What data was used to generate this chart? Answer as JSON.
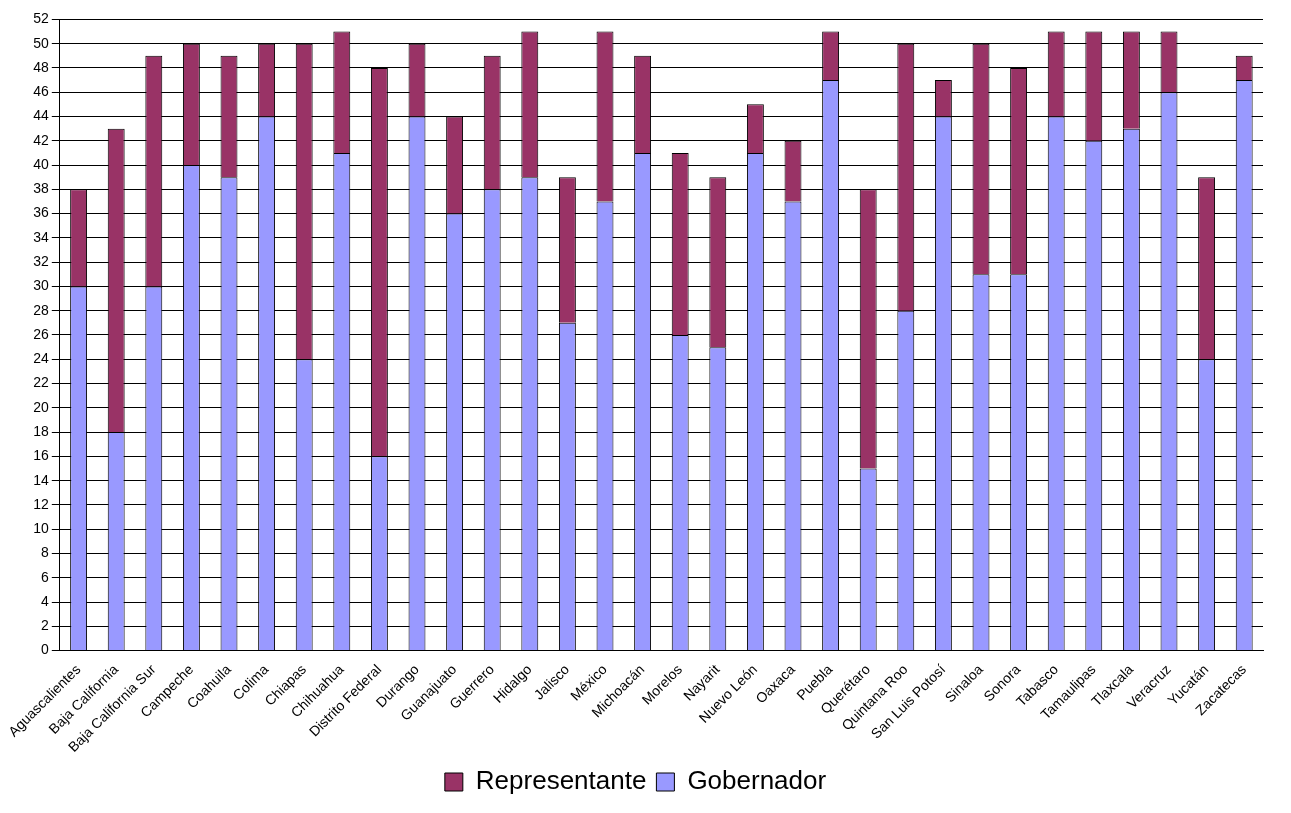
{
  "chart_data": {
    "type": "bar",
    "stacked": true,
    "categories": [
      "Aguascalientes",
      "Baja California",
      "Baja California Sur",
      "Campeche",
      "Coahuila",
      "Colima",
      "Chiapas",
      "Chihuahua",
      "Distrito Federal",
      "Durango",
      "Guanajuato",
      "Guerrero",
      "Hidalgo",
      "Jalisco",
      "México",
      "Michoacán",
      "Morelos",
      "Nayarit",
      "Nuevo León",
      "Oaxaca",
      "Puebla",
      "Querétaro",
      "Quintana Roo",
      "San Luis Potosí",
      "Sinaloa",
      "Sonora",
      "Tabasco",
      "Tamaulipas",
      "Tlaxcala",
      "Veracruz",
      "Yucatán",
      "Zacatecas"
    ],
    "series": [
      {
        "name": "Gobernador",
        "color": "#9999ff",
        "values": [
          30,
          18,
          30,
          40,
          39,
          44,
          24,
          41,
          16,
          44,
          36,
          38,
          39,
          27,
          37,
          41,
          26,
          25,
          41,
          37,
          47,
          15,
          28,
          44,
          31,
          31,
          44,
          42,
          43,
          46,
          24,
          47
        ]
      },
      {
        "name": "Representante",
        "color": "#993366",
        "values": [
          8,
          25,
          19,
          10,
          10,
          6,
          26,
          10,
          32,
          6,
          8,
          11,
          12,
          12,
          14,
          8,
          15,
          14,
          4,
          5,
          4,
          23,
          22,
          3,
          19,
          17,
          7,
          9,
          8,
          5,
          15,
          2
        ]
      }
    ],
    "ylim": [
      0,
      52
    ],
    "yticks": [
      0,
      2,
      4,
      6,
      8,
      10,
      12,
      14,
      16,
      18,
      20,
      22,
      24,
      26,
      28,
      30,
      32,
      34,
      36,
      38,
      40,
      42,
      44,
      46,
      48,
      50,
      52
    ],
    "grid": "y",
    "legend": "bottom"
  }
}
